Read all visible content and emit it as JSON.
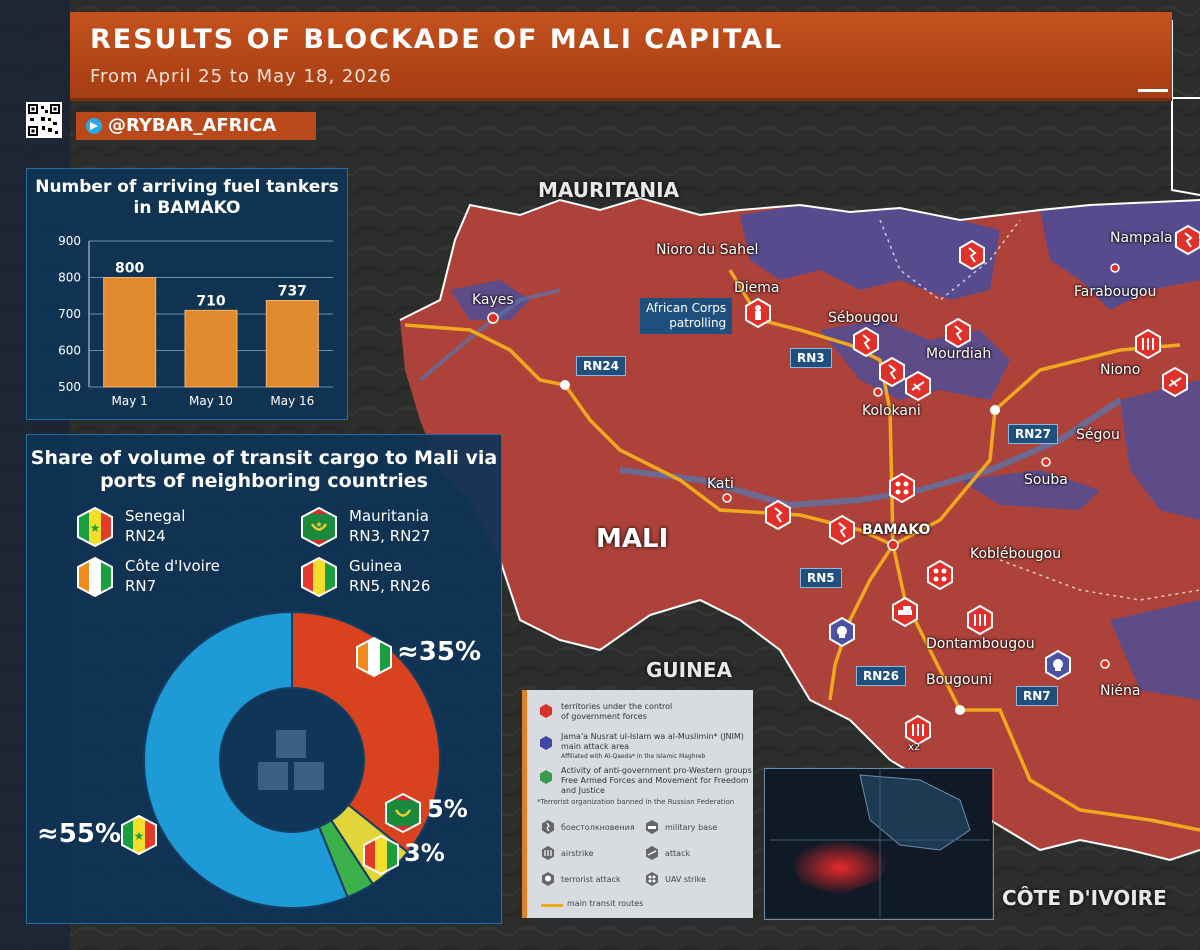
{
  "header": {
    "title": "RESULTS OF BLOCKADE OF MALI CAPITAL",
    "subtitle": "From April 25 to May 18, 2026"
  },
  "source": {
    "handle": "@RYBAR_AFRICA",
    "watermark": "@RYBAR_AFRICA"
  },
  "chart_data": [
    {
      "type": "bar",
      "title": "Number of arriving fuel tankers in BAMAKO",
      "categories": [
        "May 1",
        "May 10",
        "May 16"
      ],
      "values": [
        800,
        710,
        737
      ],
      "ylim": [
        500,
        900
      ],
      "yticks": [
        500,
        600,
        700,
        800,
        900
      ],
      "grid": true,
      "bar_color": "#e0892e"
    },
    {
      "type": "pie",
      "title": "Share of volume of transit cargo to Mali via ports of neighboring countries",
      "slices": [
        {
          "name": "Côte d'Ivoire",
          "value": 35,
          "label": "≈35%",
          "color": "#d9421f"
        },
        {
          "name": "Mauritania",
          "value": 5,
          "label": "5%",
          "color": "#e2d53a"
        },
        {
          "name": "Guinea",
          "value": 3,
          "label": "3%",
          "color": "#3cb04a"
        },
        {
          "name": "Senegal",
          "value": 55,
          "label": "≈55%",
          "color": "#1e9bd7"
        }
      ]
    }
  ],
  "pie_legend": [
    {
      "country": "Senegal",
      "routes": "RN24",
      "flag": "senegal-flag-icon"
    },
    {
      "country": "Mauritania",
      "routes": "RN3, RN27",
      "flag": "mauritania-flag-icon"
    },
    {
      "country": "Côte d'Ivoire",
      "routes": "RN7",
      "flag": "cote-divoire-flag-icon"
    },
    {
      "country": "Guinea",
      "routes": "RN5, RN26",
      "flag": "guinea-flag-icon"
    }
  ],
  "map": {
    "countries": {
      "mauritania": "MAURITANIA",
      "mali": "MALI",
      "guinea": "GUINEA",
      "cote_divoire": "CÔTE D'IVOIRE"
    },
    "cities": {
      "nioro": "Nioro du Sahel",
      "diema": "Diema",
      "kayes": "Kayes",
      "sebougou": "Sébougou",
      "mourdiah": "Mourdiah",
      "kolokani": "Kolokani",
      "kati": "Kati",
      "bamako": "BAMAKO",
      "koblebougou": "Koblébougou",
      "segou": "Ségou",
      "souba": "Souba",
      "niono": "Niono",
      "nampala": "Nampala",
      "farabougou": "Farabougou",
      "dontambougou": "Dontambougou",
      "bougouni": "Bougouni",
      "niena": "Niéna"
    },
    "roads": {
      "rn24": "RN24",
      "rn3": "RN3",
      "rn27": "RN27",
      "rn5": "RN5",
      "rn26": "RN26",
      "rn7": "RN7"
    },
    "callout": {
      "line1": "African Corps",
      "line2": "patrolling"
    },
    "strike_count": "x2",
    "colors": {
      "government": "#c24a42",
      "jnim": "#5a4f95",
      "route": "#f0a81e"
    }
  },
  "legend": {
    "government": {
      "line1": "territories under the control",
      "line2": "of government forces"
    },
    "jnim": {
      "line1": "Jama'a Nusrat ul-Islam wa al-Muslimin* (JNIM)",
      "line2": "main attack area",
      "line3": "Affiliated with Al-Qaeda* in the Islamic Maghreb"
    },
    "antigov": {
      "line1": "Activity of anti-government pro-Western groups",
      "line2": "Free Armed Forces and Movement for Freedom",
      "line3": "and Justice"
    },
    "footnote": "*Terrorist organization banned in the Russian Federation",
    "icons": {
      "clash": "боестолкновения",
      "base": "military base",
      "airstrike": "airstrike",
      "attack": "attack",
      "terror": "terrorist attack",
      "uav": "UAV strike"
    },
    "routes": "main transit routes"
  }
}
